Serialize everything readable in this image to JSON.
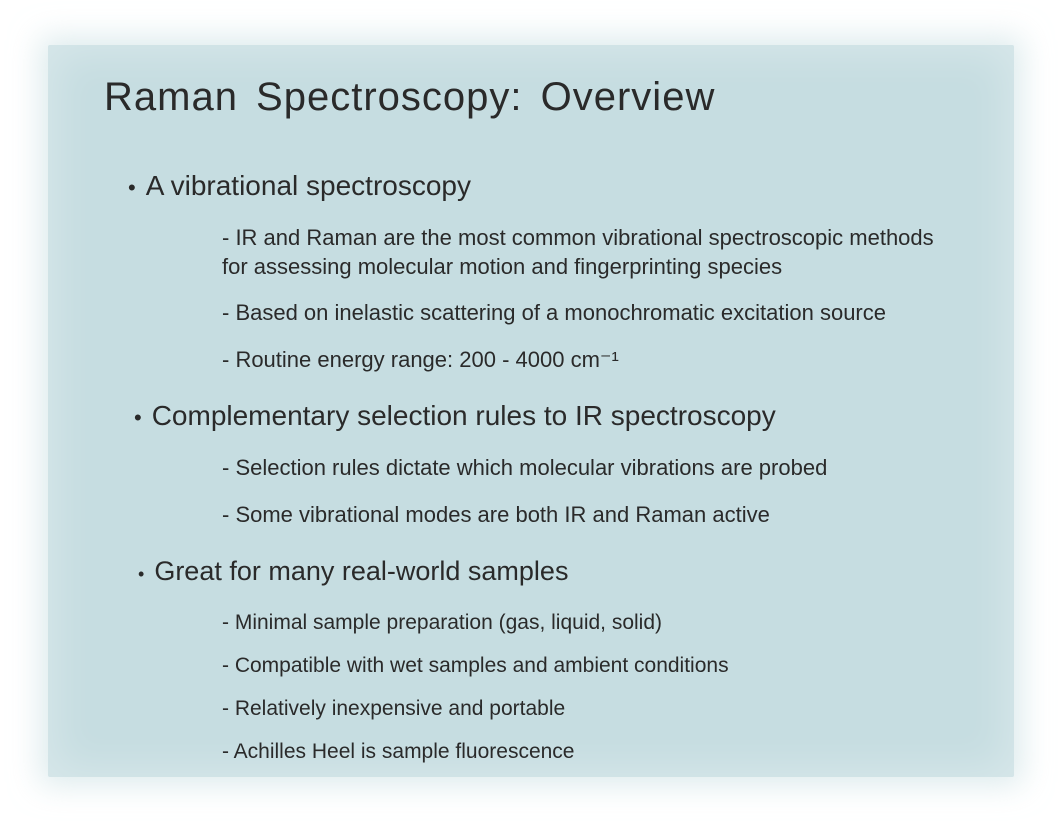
{
  "slide": {
    "title": "Raman  Spectroscopy:  Overview",
    "background_color": "#c6dde1",
    "text_color": "#2a2a2a",
    "title_fontsize": 40,
    "bullet_fontsize": 28,
    "sub_fontsize": 22,
    "sections": [
      {
        "bullet": "A vibrational spectroscopy",
        "subs": [
          "- IR and Raman are the most common vibrational spectroscopic methods for assessing molecular motion and fingerprinting species",
          "- Based on inelastic scattering of a monochromatic excitation source",
          "- Routine energy range: 200 - 4000 cm⁻¹"
        ]
      },
      {
        "bullet": "Complementary selection rules to IR spectroscopy",
        "subs": [
          "- Selection rules dictate which molecular vibrations are probed",
          "- Some vibrational modes are both IR and Raman active"
        ]
      },
      {
        "bullet": "Great for many real-world samples",
        "subs": [
          "- Minimal sample preparation (gas, liquid, solid)",
          "- Compatible with wet samples and ambient conditions",
          "- Relatively inexpensive and portable",
          "- Achilles Heel is sample fluorescence"
        ]
      }
    ]
  }
}
